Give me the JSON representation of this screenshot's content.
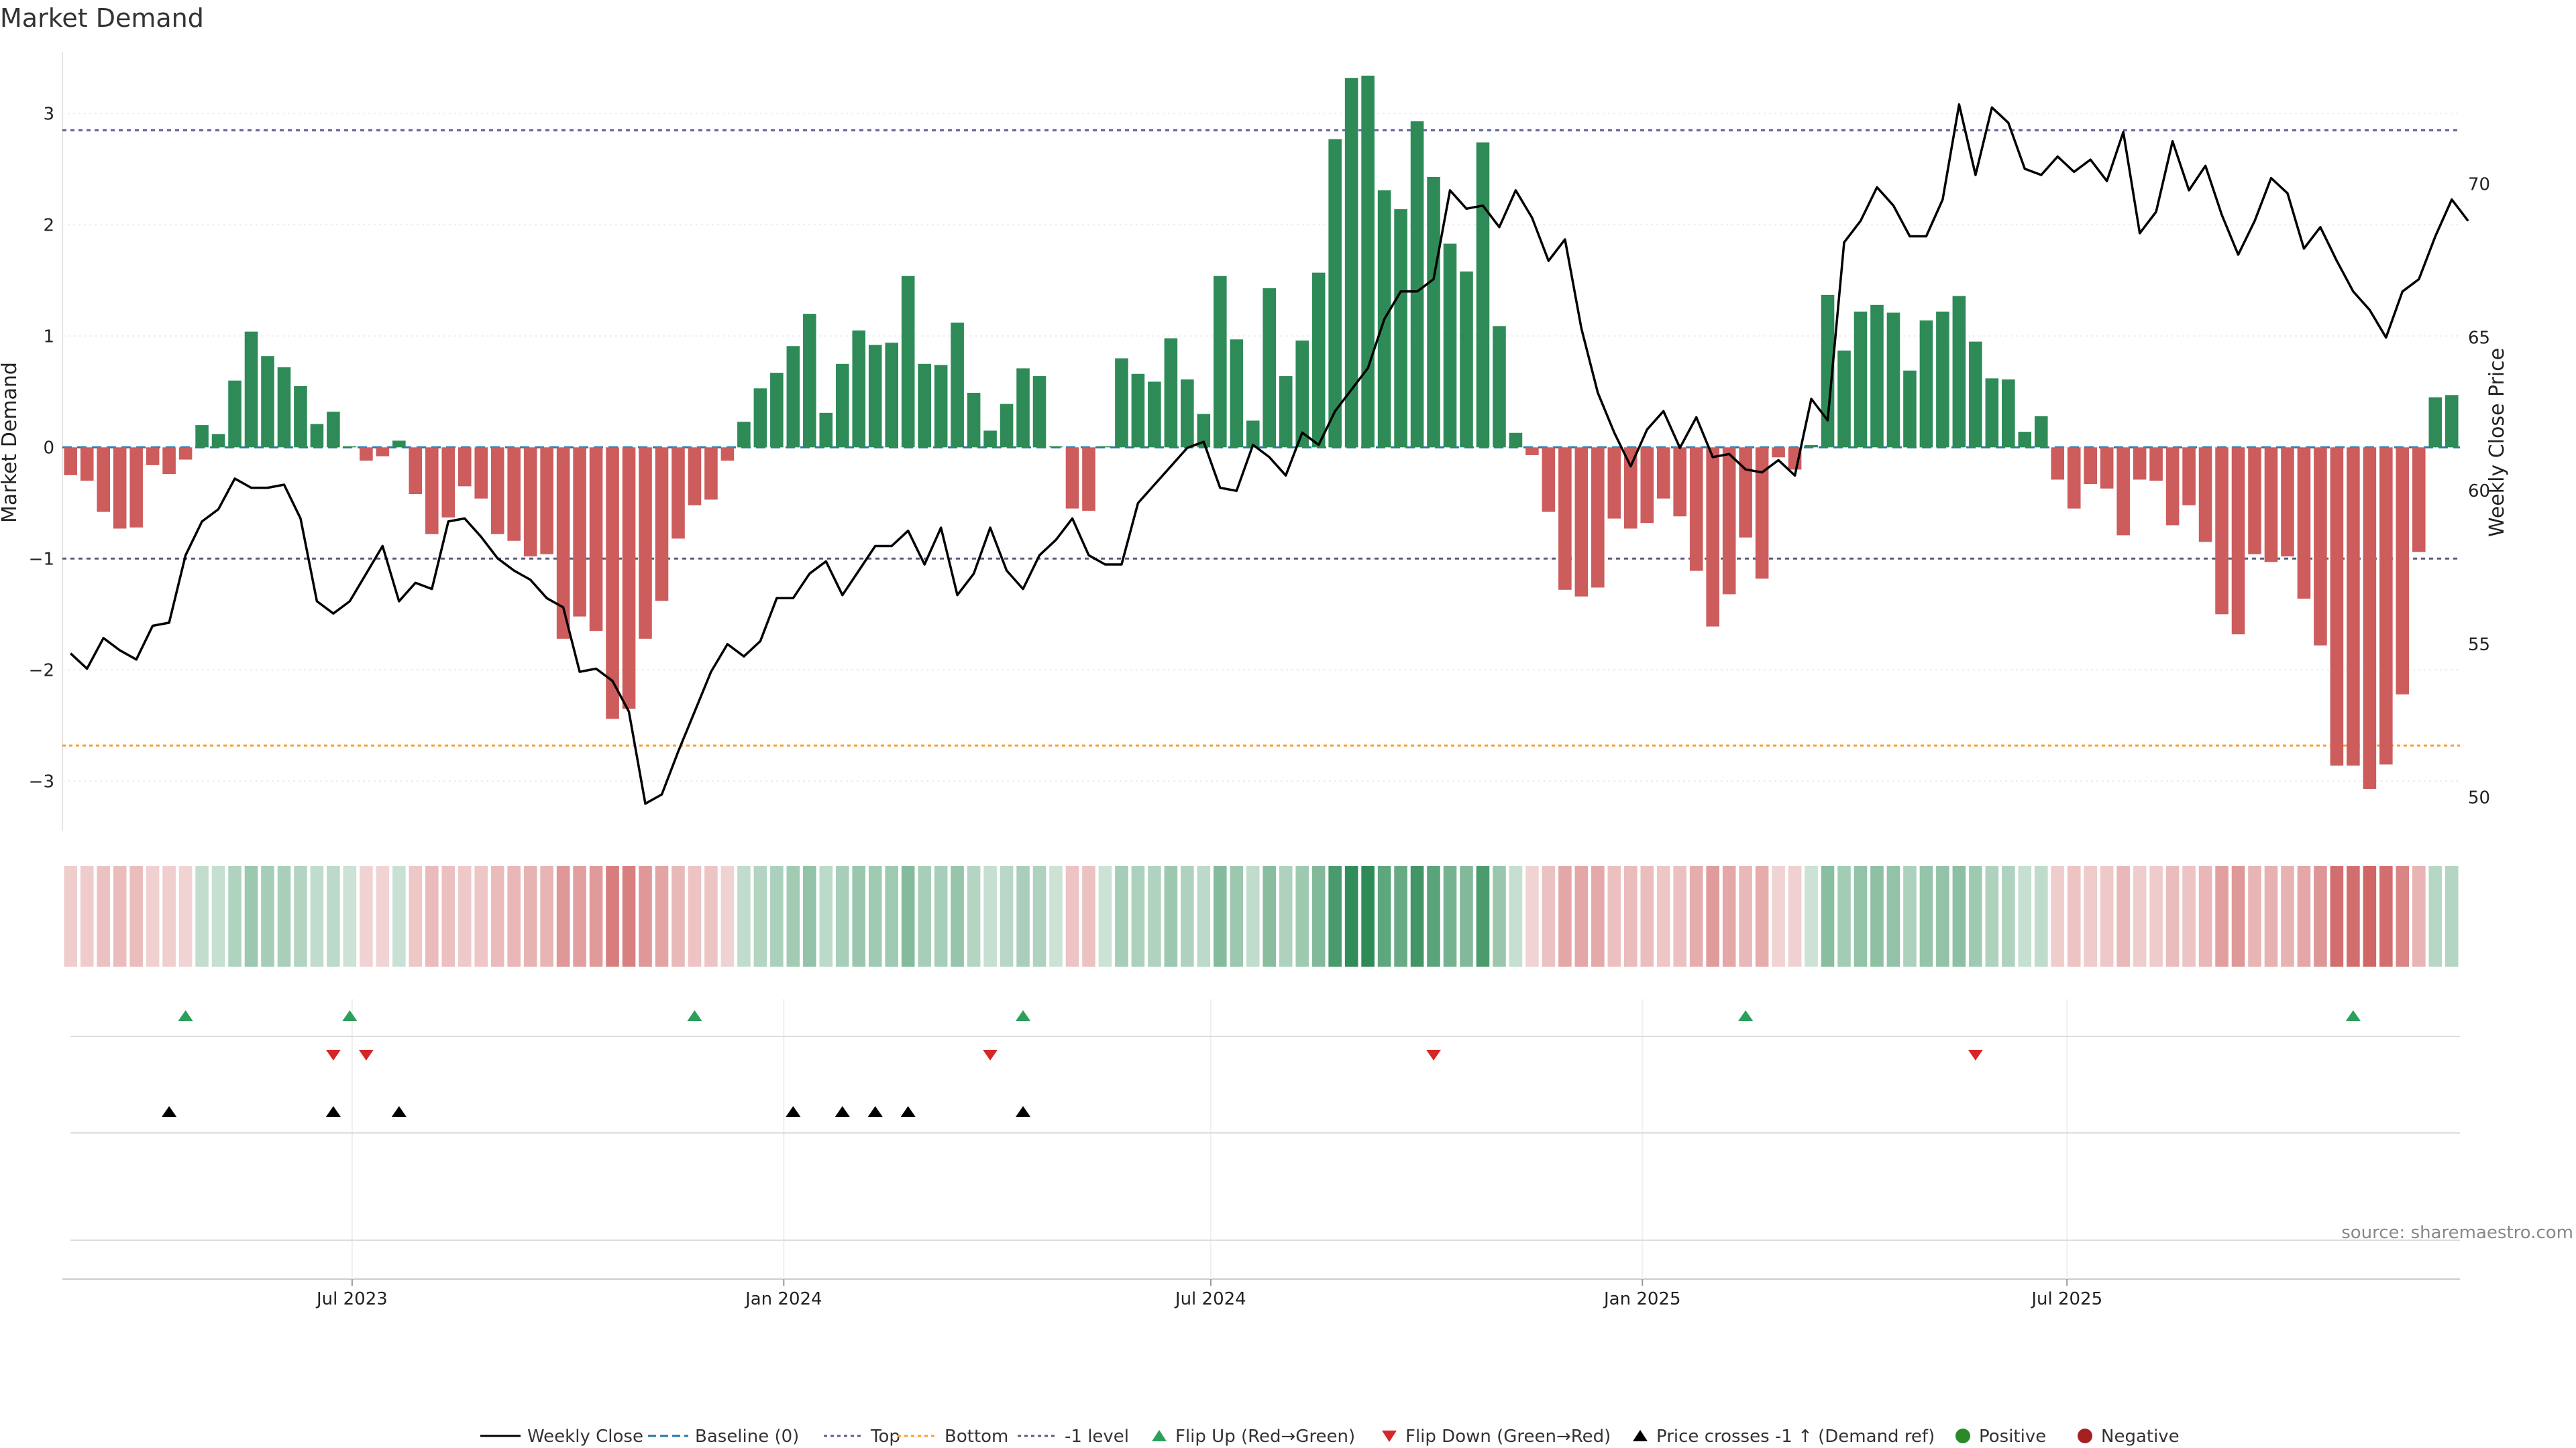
{
  "chart_data": {
    "type": "bar",
    "title": "Market Demand",
    "ylabel": "Market Demand",
    "y2label": "Weekly Close Price",
    "ylim": [
      -3.45,
      3.55
    ],
    "y2lim": [
      48.9,
      74.3
    ],
    "yticks": [
      -3,
      -2,
      -1,
      0,
      1,
      2,
      3
    ],
    "y2ticks": [
      50,
      55,
      60,
      65,
      70
    ],
    "x_start": "2023-03-03",
    "x_interval_days": 7,
    "date_ticks": [
      {
        "label": "Jul 2023",
        "date": "2023-07-01"
      },
      {
        "label": "Jan 2024",
        "date": "2024-01-01"
      },
      {
        "label": "Jul 2024",
        "date": "2024-07-01"
      },
      {
        "label": "Jan 2025",
        "date": "2025-01-01"
      },
      {
        "label": "Jul 2025",
        "date": "2025-07-01"
      }
    ],
    "reference_lines": {
      "top": 2.85,
      "bottom": -2.68,
      "minus_one": -1,
      "baseline": 0
    },
    "demand": [
      -0.25,
      -0.3,
      -0.58,
      -0.73,
      -0.72,
      -0.16,
      -0.24,
      -0.11,
      0.2,
      0.12,
      0.6,
      1.04,
      0.82,
      0.72,
      0.55,
      0.21,
      0.32,
      0.01,
      -0.12,
      -0.08,
      0.06,
      -0.42,
      -0.78,
      -0.63,
      -0.35,
      -0.46,
      -0.78,
      -0.84,
      -0.98,
      -0.96,
      -1.72,
      -1.52,
      -1.65,
      -2.44,
      -2.35,
      -1.72,
      -1.38,
      -0.82,
      -0.52,
      -0.47,
      -0.12,
      0.23,
      0.53,
      0.67,
      0.91,
      1.2,
      0.31,
      0.75,
      1.05,
      0.92,
      0.94,
      1.54,
      0.75,
      0.74,
      1.12,
      0.49,
      0.15,
      0.39,
      0.71,
      0.64,
      0.01,
      -0.55,
      -0.57,
      0.01,
      0.8,
      0.66,
      0.59,
      0.98,
      0.61,
      0.3,
      1.54,
      0.97,
      0.24,
      1.43,
      0.64,
      0.96,
      1.57,
      2.77,
      3.32,
      3.34,
      2.31,
      2.14,
      2.93,
      2.43,
      1.83,
      1.58,
      2.74,
      1.09,
      0.13,
      -0.07,
      -0.58,
      -1.28,
      -1.34,
      -1.26,
      -0.64,
      -0.73,
      -0.68,
      -0.46,
      -0.62,
      -1.11,
      -1.61,
      -1.32,
      -0.81,
      -1.18,
      -0.09,
      -0.2,
      0.02,
      1.37,
      0.87,
      1.22,
      1.28,
      1.21,
      0.69,
      1.14,
      1.22,
      1.36,
      0.95,
      0.62,
      0.61,
      0.14,
      0.28,
      -0.29,
      -0.55,
      -0.33,
      -0.37,
      -0.79,
      -0.29,
      -0.3,
      -0.7,
      -0.52,
      -0.85,
      -1.5,
      -1.68,
      -0.96,
      -1.03,
      -0.98,
      -1.36,
      -1.78,
      -2.86,
      -2.86,
      -3.07,
      -2.85,
      -2.22,
      -0.94,
      0.45,
      0.47
    ],
    "weekly_close": [
      54.7,
      54.2,
      55.2,
      54.8,
      54.5,
      55.6,
      55.7,
      57.9,
      59.0,
      59.4,
      60.4,
      60.1,
      60.1,
      60.2,
      59.1,
      56.4,
      56.0,
      56.4,
      57.3,
      58.2,
      56.4,
      57.0,
      56.8,
      59.0,
      59.1,
      58.5,
      57.8,
      57.4,
      57.1,
      56.5,
      56.2,
      54.1,
      54.2,
      53.8,
      52.8,
      49.8,
      50.1,
      51.5,
      52.8,
      54.1,
      55.0,
      54.6,
      55.1,
      56.5,
      56.5,
      57.3,
      57.7,
      56.6,
      57.4,
      58.2,
      58.2,
      58.7,
      57.6,
      58.8,
      56.6,
      57.3,
      58.8,
      57.4,
      56.8,
      57.9,
      58.4,
      59.1,
      57.9,
      57.6,
      57.6,
      59.6,
      60.2,
      60.8,
      61.4,
      61.6,
      60.1,
      60.0,
      61.5,
      61.1,
      60.5,
      61.9,
      61.5,
      62.6,
      63.3,
      64.0,
      65.6,
      66.5,
      66.5,
      66.9,
      69.8,
      69.2,
      69.3,
      68.6,
      69.8,
      68.9,
      67.5,
      68.2,
      65.3,
      63.2,
      61.9,
      60.8,
      62.0,
      62.6,
      61.4,
      62.4,
      61.1,
      61.2,
      60.7,
      60.6,
      61.0,
      60.5,
      63.0,
      62.3,
      68.1,
      68.8,
      69.9,
      69.3,
      68.3,
      68.3,
      69.5,
      72.6,
      70.3,
      72.5,
      72.0,
      70.5,
      70.3,
      70.9,
      70.4,
      70.8,
      70.1,
      71.7,
      68.4,
      69.1,
      71.4,
      69.8,
      70.6,
      69.0,
      67.7,
      68.8,
      70.2,
      69.7,
      67.9,
      68.6,
      67.5,
      66.5,
      65.9,
      65.0,
      66.5,
      66.9,
      68.3,
      69.5,
      68.8
    ],
    "flip_up_dates": [
      "2023-04-21",
      "2023-06-30",
      "2023-11-24",
      "2024-04-12",
      "2025-02-14",
      "2025-10-31"
    ],
    "flip_down_dates": [
      "2023-06-23",
      "2023-07-07",
      "2024-03-29",
      "2024-10-04",
      "2025-05-23"
    ],
    "price_cross_dates": [
      "2023-04-14",
      "2023-06-23",
      "2023-07-21",
      "2024-01-05",
      "2024-01-26",
      "2024-02-09",
      "2024-02-23",
      "2024-04-12"
    ],
    "legend": [
      "Weekly Close",
      "Baseline (0)",
      "Top",
      "Bottom",
      "-1 level",
      "Flip Up (Red→Green)",
      "Flip Down (Green→Red)",
      "Price crosses -1 ↑ (Demand ref)",
      "Positive",
      "Negative"
    ],
    "legend_placement": "bottom-center",
    "colors": {
      "positive": "#2e8b57",
      "negative": "#cd5c5c",
      "price": "#000000",
      "baseline": "#1f77b4",
      "top": "#5b5b9b",
      "bottom": "#ff9e2c",
      "minus_one": "#5b5b7b",
      "flip_up": "#2ca05a",
      "flip_down": "#d62728",
      "cross": "#000000",
      "positive_dot": "#2a8a2a",
      "negative_dot": "#a52020"
    },
    "grid": true
  },
  "source": "source: sharemaestro.com"
}
